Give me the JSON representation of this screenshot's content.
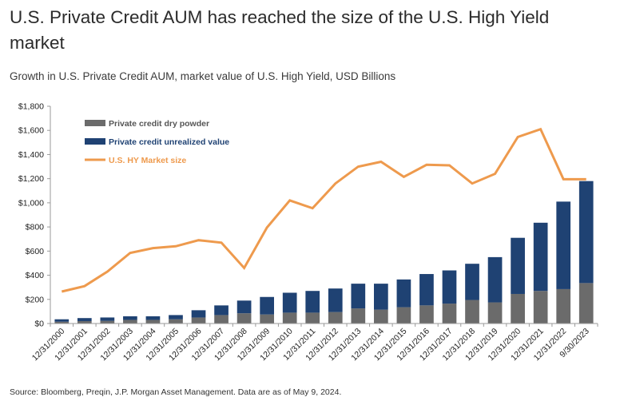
{
  "header": {
    "title": "U.S. Private Credit AUM has reached the size of the U.S. High Yield market",
    "subtitle": "Growth in U.S. Private Credit AUM, market value of U.S. High Yield, USD Billions",
    "source": "Source: Bloomberg, Preqin, J.P. Morgan Asset Management. Data are as of May 9, 2024."
  },
  "colors": {
    "dry_powder": "#6b6b6b",
    "unrealized": "#1f4273",
    "hy_line": "#ee9a4d",
    "axis": "#9a9a9a",
    "tick_text": "#222222",
    "legend_dry": "#555555",
    "legend_unrealized": "#1f4273",
    "legend_hy": "#ee9a4d"
  },
  "chart_data": {
    "type": "bar",
    "stacked": true,
    "categories": [
      "12/31/2000",
      "12/31/2001",
      "12/31/2002",
      "12/31/2003",
      "12/31/2004",
      "12/31/2005",
      "12/31/2006",
      "12/31/2007",
      "12/31/2008",
      "12/31/2009",
      "12/31/2010",
      "12/31/2011",
      "12/31/2012",
      "12/31/2013",
      "12/31/2014",
      "12/31/2015",
      "12/31/2016",
      "12/31/2017",
      "12/31/2018",
      "12/31/2019",
      "12/31/2020",
      "12/31/2021",
      "12/31/2022",
      "9/30/2023"
    ],
    "series": [
      {
        "name": "Private credit dry powder",
        "type": "bar",
        "values": [
          15,
          20,
          22,
          30,
          30,
          35,
          50,
          70,
          85,
          75,
          90,
          90,
          95,
          125,
          115,
          135,
          150,
          165,
          195,
          175,
          245,
          270,
          285,
          335
        ]
      },
      {
        "name": "Private credit unrealized value",
        "type": "bar",
        "values": [
          20,
          25,
          28,
          30,
          30,
          35,
          60,
          80,
          105,
          145,
          165,
          180,
          195,
          205,
          215,
          230,
          260,
          275,
          300,
          375,
          465,
          565,
          725,
          845
        ]
      },
      {
        "name": "U.S. HY Market size",
        "type": "line",
        "values": [
          265,
          310,
          430,
          585,
          625,
          640,
          690,
          670,
          460,
          795,
          1020,
          955,
          1160,
          1300,
          1340,
          1215,
          1315,
          1310,
          1160,
          1240,
          1545,
          1610,
          1195,
          1195
        ]
      }
    ],
    "yticks": [
      "$0",
      "$200",
      "$400",
      "$600",
      "$800",
      "$1,000",
      "$1,200",
      "$1,400",
      "$1,600",
      "$1,800"
    ],
    "ylim": [
      0,
      1800
    ],
    "legend_position": "top-left"
  }
}
